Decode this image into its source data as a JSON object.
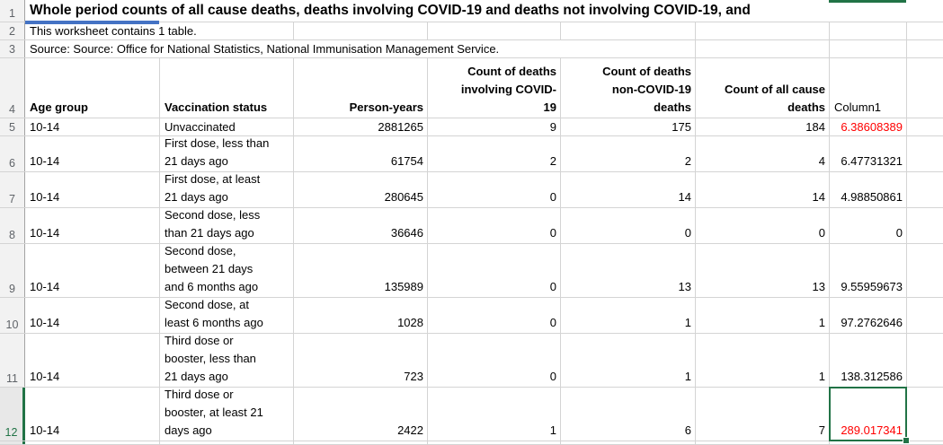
{
  "app": "spreadsheet-worksheet",
  "colors": {
    "grid_line": "#d4d4d4",
    "gutter_bg": "#f2f2f2",
    "selection_green": "#217346",
    "value_alert_red": "#ff0000",
    "title_underline_blue": "#4472c4"
  },
  "gutter": {
    "rows": [
      "1",
      "2",
      "3",
      "4",
      "5",
      "6",
      "7",
      "8",
      "9",
      "10",
      "11",
      "12"
    ],
    "selected_row": "12"
  },
  "sheet": {
    "title": "Whole period counts of all cause deaths, deaths involving COVID-19 and deaths not involving COVID-19, and",
    "note": "This worksheet contains 1 table.",
    "source": "Source: Source: Office for National Statistics, National Immunisation Management Service.",
    "headers": {
      "age_group": "Age group",
      "vaccination_status": "Vaccination status",
      "person_years": "Person-years",
      "covid_deaths": "Count of deaths\ninvolving COVID-\n19",
      "non_covid_deaths": "Count of deaths\nnon-COVID-19\ndeaths",
      "all_cause_deaths": "Count of all cause\ndeaths",
      "column1": "Column1"
    },
    "rows": [
      {
        "age": "10-14",
        "status": "Unvaccinated",
        "py": "2881265",
        "covid": "9",
        "noncovid": "175",
        "allcause": "184",
        "col1": "6.38608389"
      },
      {
        "age": "10-14",
        "status": "First dose, less than\n21 days ago",
        "py": "61754",
        "covid": "2",
        "noncovid": "2",
        "allcause": "4",
        "col1": "6.47731321"
      },
      {
        "age": "10-14",
        "status": "First dose, at least\n21 days ago",
        "py": "280645",
        "covid": "0",
        "noncovid": "14",
        "allcause": "14",
        "col1": "4.98850861"
      },
      {
        "age": "10-14",
        "status": "Second dose, less\nthan 21 days ago",
        "py": "36646",
        "covid": "0",
        "noncovid": "0",
        "allcause": "0",
        "col1": "0"
      },
      {
        "age": "10-14",
        "status": "Second dose,\nbetween 21 days\nand 6 months ago",
        "py": "135989",
        "covid": "0",
        "noncovid": "13",
        "allcause": "13",
        "col1": "9.55959673"
      },
      {
        "age": "10-14",
        "status": "Second dose, at\nleast 6 months ago",
        "py": "1028",
        "covid": "0",
        "noncovid": "1",
        "allcause": "1",
        "col1": "97.2762646"
      },
      {
        "age": "10-14",
        "status": "Third dose or\nbooster, less than\n21 days ago",
        "py": "723",
        "covid": "0",
        "noncovid": "1",
        "allcause": "1",
        "col1": "138.312586"
      },
      {
        "age": "10-14",
        "status": "Third dose or\nbooster, at least 21\ndays ago",
        "py": "2422",
        "covid": "1",
        "noncovid": "6",
        "allcause": "7",
        "col1": "289.017341"
      }
    ]
  }
}
